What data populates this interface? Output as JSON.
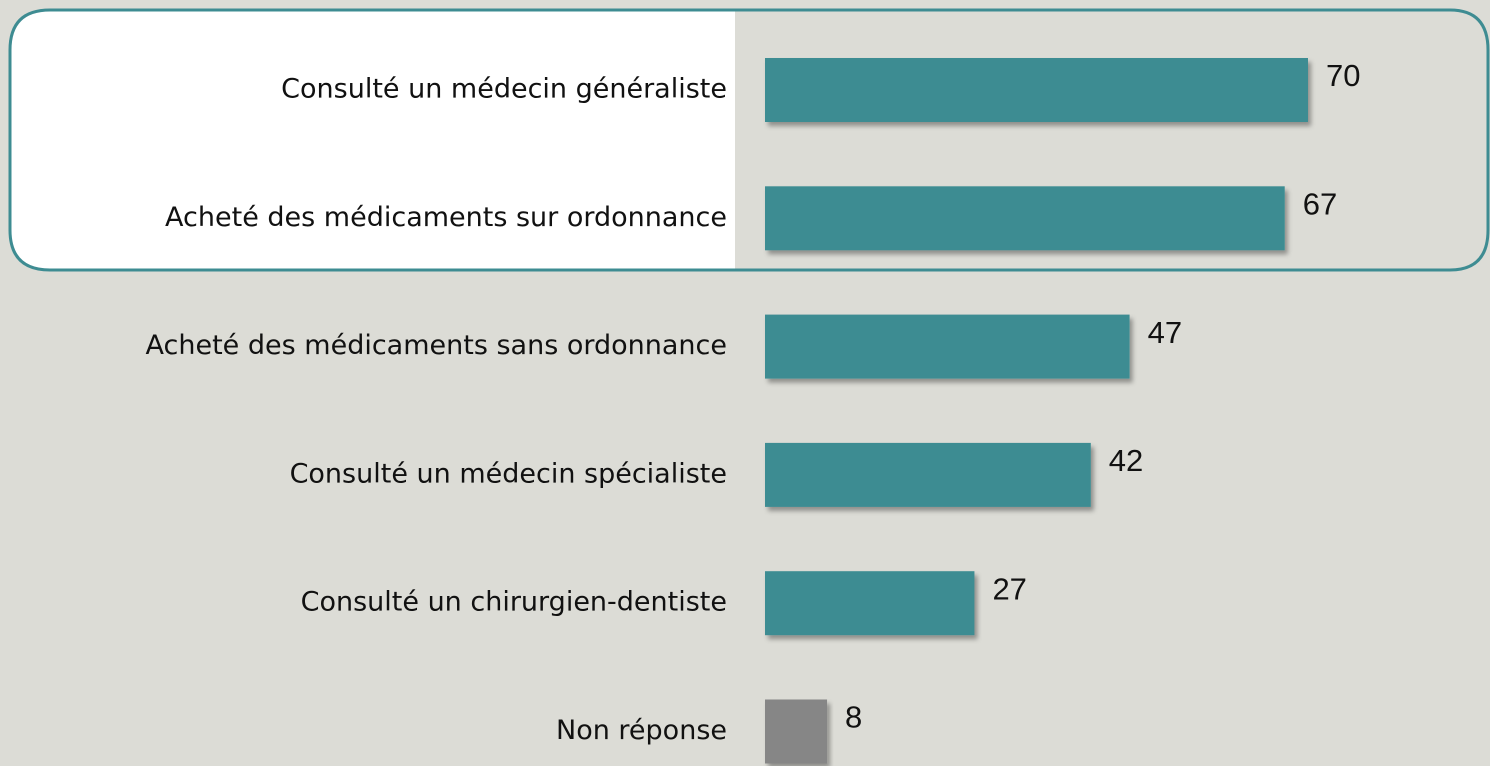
{
  "chart_data": {
    "type": "bar",
    "orientation": "horizontal",
    "categories": [
      "Consulté un médecin généraliste",
      "Acheté des médicaments sur ordonnance",
      "Acheté des médicaments sans ordonnance",
      "Consulté un médecin spécialiste",
      "Consulté un chirurgien-dentiste",
      "Non réponse"
    ],
    "values": [
      70,
      67,
      47,
      42,
      27,
      8
    ],
    "colors": [
      "#3e8c92",
      "#3e8c92",
      "#3e8c92",
      "#3e8c92",
      "#3e8c92",
      "#868686"
    ]
  }
}
